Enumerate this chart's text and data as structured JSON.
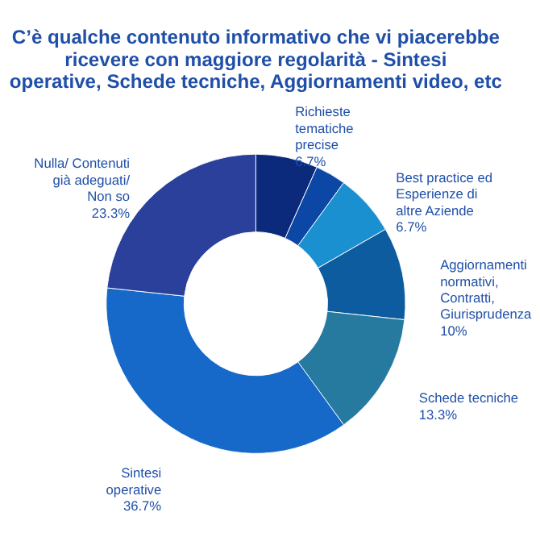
{
  "chart_data": {
    "type": "donut",
    "title": "C’è qualche contenuto informativo che vi piacerebbe ricevere con maggiore regolarità - Sintesi operative, Schede tecniche, Aggiornamenti video, etc",
    "categories": [
      "Richieste tematiche precise",
      null,
      "Best practice ed Esperienze di altre Aziende",
      "Aggiornamenti normativi, Contratti, Giurisprudenza",
      "Schede tecniche",
      "Sintesi operative",
      "Nulla/ Contenuti già adeguati/ Non so"
    ],
    "values": [
      6.7,
      3.3,
      6.7,
      10,
      13.3,
      36.7,
      23.3
    ],
    "value_labels": [
      "6.7%",
      null,
      "6.7%",
      "10%",
      "13.3%",
      "36.7%",
      "23.3%"
    ],
    "colors": [
      "#0b2a7c",
      "#0c47a6",
      "#1b90d0",
      "#0d5c9f",
      "#26799f",
      "#1668c9",
      "#2b409a"
    ]
  }
}
